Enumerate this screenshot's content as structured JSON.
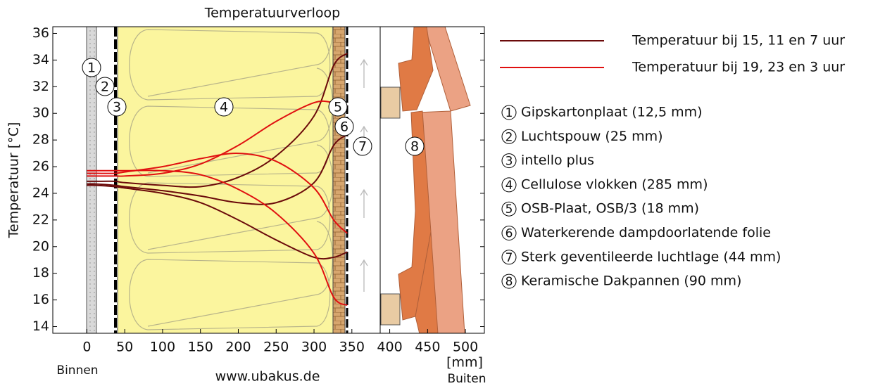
{
  "chart_data": {
    "type": "line",
    "title": "Temperatuurverloop",
    "y_label": "Temperatuur [°C]",
    "x_unit": "[mm]",
    "inside_label": "Binnen",
    "outside_label": "Buiten",
    "source": "www.ubakus.de",
    "x": [
      0,
      12.5,
      37.5,
      50,
      100,
      150,
      200,
      250,
      300,
      326,
      344
    ],
    "series": [
      {
        "name": "Temperatuur bij 15, 11 en 7 uur",
        "color": "#6b0a0a",
        "curves": [
          [
            24.9,
            24.9,
            24.9,
            24.8,
            24.6,
            24.5,
            25.2,
            26.8,
            29.8,
            33.6,
            34.5
          ],
          [
            24.7,
            24.7,
            24.6,
            24.5,
            24.2,
            23.8,
            23.3,
            23.3,
            24.8,
            27.6,
            28.4
          ],
          [
            24.6,
            24.6,
            24.5,
            24.4,
            24.0,
            23.3,
            22.0,
            20.5,
            19.2,
            19.2,
            19.6
          ]
        ]
      },
      {
        "name": "Temperatuur bij 19, 23 en 3 uur",
        "color": "#e01010",
        "curves": [
          [
            25.3,
            25.3,
            25.3,
            25.3,
            25.5,
            26.2,
            27.6,
            29.4,
            30.8,
            30.8,
            30.5
          ],
          [
            25.5,
            25.5,
            25.5,
            25.6,
            26.0,
            26.6,
            27.0,
            26.4,
            24.4,
            22.0,
            21.0
          ],
          [
            25.7,
            25.7,
            25.7,
            25.7,
            25.7,
            25.4,
            24.3,
            22.5,
            19.5,
            16.2,
            15.6
          ]
        ]
      }
    ],
    "layers": [
      {
        "number": "1",
        "label": "Gipskartonplaat (12,5 mm)"
      },
      {
        "number": "2",
        "label": "Luchtspouw (25 mm)"
      },
      {
        "number": "3",
        "label": "intello plus"
      },
      {
        "number": "4",
        "label": "Cellulose vlokken (285 mm)"
      },
      {
        "number": "5",
        "label": "OSB-Plaat, OSB/3 (18 mm)"
      },
      {
        "number": "6",
        "label": "Waterkerende dampdoorlatende folie"
      },
      {
        "number": "7",
        "label": "Sterk geventileerde luchtlage (44 mm)"
      },
      {
        "number": "8",
        "label": "Keramische Dakpannen (90 mm)"
      }
    ],
    "xlim": [
      -45,
      525
    ],
    "ylim": [
      13.5,
      36.5
    ],
    "xticks": [
      0,
      50,
      100,
      150,
      200,
      250,
      300,
      350,
      400,
      450,
      500
    ],
    "yticks": [
      14,
      16,
      18,
      20,
      22,
      24,
      26,
      28,
      30,
      32,
      34,
      36
    ]
  }
}
